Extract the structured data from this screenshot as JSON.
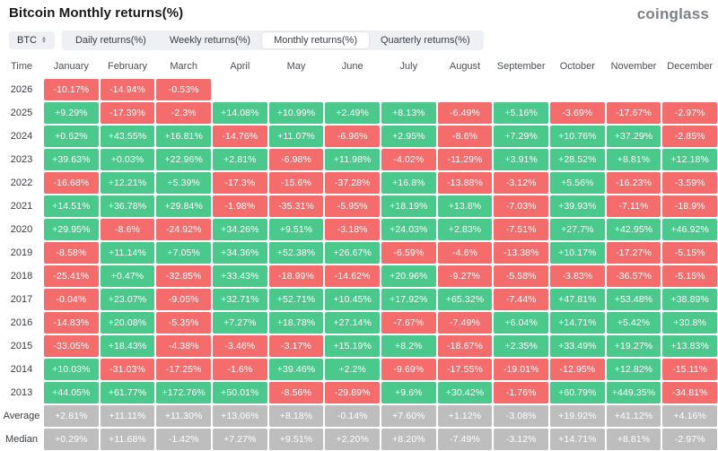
{
  "header": {
    "title": "Bitcoin Monthly returns(%)",
    "logo": "coinglass"
  },
  "controls": {
    "symbol_select": {
      "label": "BTC",
      "icon": "sort-arrows"
    },
    "tabs": [
      {
        "label": "Daily returns(%)",
        "active": false
      },
      {
        "label": "Weekly returns(%)",
        "active": false
      },
      {
        "label": "Monthly returns(%)",
        "active": true
      },
      {
        "label": "Quarterly returns(%)",
        "active": false
      }
    ]
  },
  "colors": {
    "positive": "#4bc88c",
    "negative": "#f56c6c",
    "neutral": "#bdbdbd",
    "cell_text": "#ffffff"
  },
  "table": {
    "columns": [
      "Time",
      "January",
      "February",
      "March",
      "April",
      "May",
      "June",
      "July",
      "August",
      "September",
      "October",
      "November",
      "December"
    ],
    "rows": [
      {
        "label": "2026",
        "kind": "year",
        "cells": [
          "-10.17%",
          "-14.94%",
          "-0.53%",
          "",
          "",
          "",
          "",
          "",
          "",
          "",
          "",
          ""
        ]
      },
      {
        "label": "2025",
        "kind": "year",
        "cells": [
          "+9.29%",
          "-17.39%",
          "-2.3%",
          "+14.08%",
          "+10.99%",
          "+2.49%",
          "+8.13%",
          "-6.49%",
          "+5.16%",
          "-3.69%",
          "-17.67%",
          "-2.97%"
        ]
      },
      {
        "label": "2024",
        "kind": "year",
        "cells": [
          "+0.62%",
          "+43.55%",
          "+16.81%",
          "-14.76%",
          "+11.07%",
          "-6.96%",
          "+2.95%",
          "-8.6%",
          "+7.29%",
          "+10.76%",
          "+37.29%",
          "-2.85%"
        ]
      },
      {
        "label": "2023",
        "kind": "year",
        "cells": [
          "+39.63%",
          "+0.03%",
          "+22.96%",
          "+2.81%",
          "-6.98%",
          "+11.98%",
          "-4.02%",
          "-11.29%",
          "+3.91%",
          "+28.52%",
          "+8.81%",
          "+12.18%"
        ]
      },
      {
        "label": "2022",
        "kind": "year",
        "cells": [
          "-16.68%",
          "+12.21%",
          "+5.39%",
          "-17.3%",
          "-15.6%",
          "-37.28%",
          "+16.8%",
          "-13.88%",
          "-3.12%",
          "+5.56%",
          "-16.23%",
          "-3.59%"
        ]
      },
      {
        "label": "2021",
        "kind": "year",
        "cells": [
          "+14.51%",
          "+36.78%",
          "+29.84%",
          "-1.98%",
          "-35.31%",
          "-5.95%",
          "+18.19%",
          "+13.8%",
          "-7.03%",
          "+39.93%",
          "-7.11%",
          "-18.9%"
        ]
      },
      {
        "label": "2020",
        "kind": "year",
        "cells": [
          "+29.95%",
          "-8.6%",
          "-24.92%",
          "+34.26%",
          "+9.51%",
          "-3.18%",
          "+24.03%",
          "+2.83%",
          "-7.51%",
          "+27.7%",
          "+42.95%",
          "+46.92%"
        ]
      },
      {
        "label": "2019",
        "kind": "year",
        "cells": [
          "-8.58%",
          "+11.14%",
          "+7.05%",
          "+34.36%",
          "+52.38%",
          "+26.67%",
          "-6.59%",
          "-4.6%",
          "-13.38%",
          "+10.17%",
          "-17.27%",
          "-5.15%"
        ]
      },
      {
        "label": "2018",
        "kind": "year",
        "cells": [
          "-25.41%",
          "+0.47%",
          "-32.85%",
          "+33.43%",
          "-18.99%",
          "-14.62%",
          "+20.96%",
          "-9.27%",
          "-5.58%",
          "-3.83%",
          "-36.57%",
          "-5.15%"
        ]
      },
      {
        "label": "2017",
        "kind": "year",
        "cells": [
          "-0.04%",
          "+23.07%",
          "-9.05%",
          "+32.71%",
          "+52.71%",
          "+10.45%",
          "+17.92%",
          "+65.32%",
          "-7.44%",
          "+47.81%",
          "+53.48%",
          "+38.89%"
        ]
      },
      {
        "label": "2016",
        "kind": "year",
        "cells": [
          "-14.83%",
          "+20.08%",
          "-5.35%",
          "+7.27%",
          "+18.78%",
          "+27.14%",
          "-7.67%",
          "-7.49%",
          "+6.04%",
          "+14.71%",
          "+5.42%",
          "+30.8%"
        ]
      },
      {
        "label": "2015",
        "kind": "year",
        "cells": [
          "-33.05%",
          "+18.43%",
          "-4.38%",
          "-3.46%",
          "-3.17%",
          "+15.19%",
          "+8.2%",
          "-18.67%",
          "+2.35%",
          "+33.49%",
          "+19.27%",
          "+13.83%"
        ]
      },
      {
        "label": "2014",
        "kind": "year",
        "cells": [
          "+10.03%",
          "-31.03%",
          "-17.25%",
          "-1.6%",
          "+39.46%",
          "+2.2%",
          "-9.69%",
          "-17.55%",
          "-19.01%",
          "-12.95%",
          "+12.82%",
          "-15.11%"
        ]
      },
      {
        "label": "2013",
        "kind": "year",
        "cells": [
          "+44.05%",
          "+61.77%",
          "+172.76%",
          "+50.01%",
          "-8.56%",
          "-29.89%",
          "+9.6%",
          "+30.42%",
          "-1.76%",
          "+60.79%",
          "+449.35%",
          "-34.81%"
        ]
      },
      {
        "label": "Average",
        "kind": "stat",
        "cells": [
          "+2.81%",
          "+11.11%",
          "+11.30%",
          "+13.06%",
          "+8.18%",
          "-0.14%",
          "+7.60%",
          "+1.12%",
          "-3.08%",
          "+19.92%",
          "+41.12%",
          "+4.16%"
        ]
      },
      {
        "label": "Median",
        "kind": "stat",
        "cells": [
          "+0.29%",
          "+11.68%",
          "-1.42%",
          "+7.27%",
          "+9.51%",
          "+2.20%",
          "+8.20%",
          "-7.49%",
          "-3.12%",
          "+14.71%",
          "+8.81%",
          "-2.97%"
        ]
      }
    ]
  }
}
